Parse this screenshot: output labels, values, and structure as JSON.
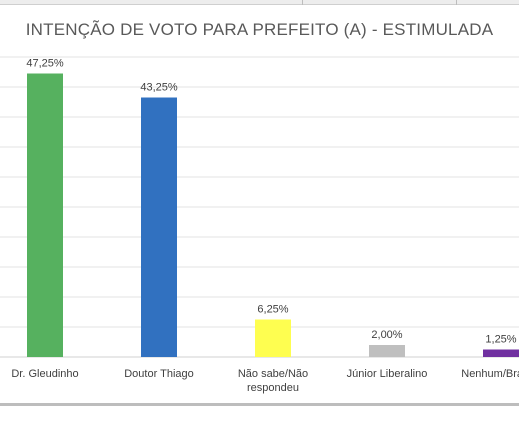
{
  "chart_data": {
    "type": "bar",
    "title": "INTENÇÃO DE VOTO PARA PREFEITO (A) - ESTIMULADA",
    "categories": [
      [
        "Dr. Gleudinho"
      ],
      [
        "Doutor Thiago"
      ],
      [
        "Não sabe/Não",
        "respondeu"
      ],
      [
        "Júnior Liberalino"
      ],
      [
        "Nenhum/Branco"
      ]
    ],
    "values": [
      47.25,
      43.25,
      6.25,
      2.0,
      1.25
    ],
    "data_labels": [
      "47,25%",
      "43,25%",
      "6,25%",
      "2,00%",
      "1,25%"
    ],
    "colors": [
      "#56b15f",
      "#3171c0",
      "#fefe50",
      "#bfbfbf",
      "#7030a0"
    ],
    "ylim": [
      0,
      50
    ],
    "grid": true,
    "legend": "none"
  }
}
